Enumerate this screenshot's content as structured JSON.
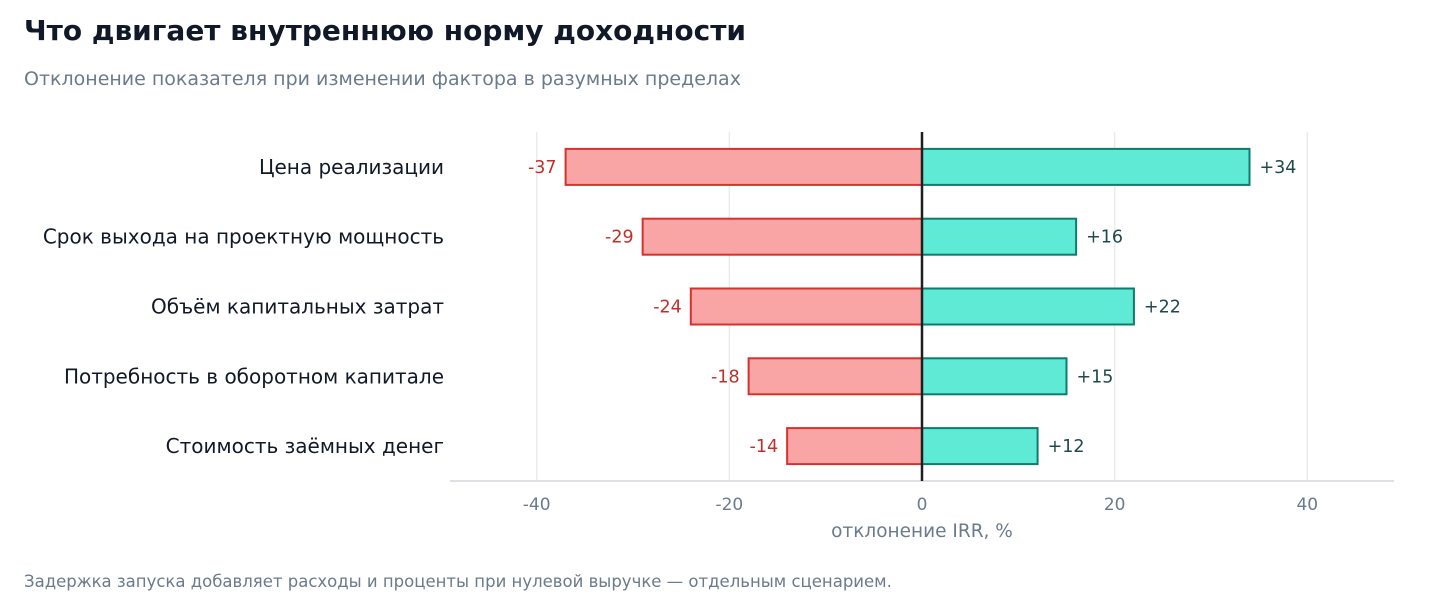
{
  "title": "Что двигает внутреннюю норму доходности",
  "subtitle": "Отклонение показателя при изменении фактора в разумных пределах",
  "footnote": "Задержка запуска добавляет расходы и проценты при нулевой выручке — отдельным сценарием.",
  "chart_data": {
    "type": "bar",
    "orientation": "horizontal",
    "layout": "tornado",
    "categories": [
      "Цена реализации",
      "Срок выхода на проектную мощность",
      "Объём капитальных затрат",
      "Потребность в оборотном капитале",
      "Стоимость заёмных денег"
    ],
    "series": [
      {
        "values": [
          -37,
          -29,
          -24,
          -18,
          -14
        ],
        "color": "#f9a5a5",
        "stroke": "#d6322d"
      },
      {
        "values": [
          34,
          16,
          22,
          15,
          12
        ],
        "color": "#5eead4",
        "stroke": "#0f7b6f"
      }
    ],
    "value_labels": {
      "negative": [
        "-37",
        "-29",
        "-24",
        "-18",
        "-14"
      ],
      "positive": [
        "+34",
        "+16",
        "+22",
        "+15",
        "+12"
      ]
    },
    "xlim": [
      -49,
      49
    ],
    "xticks": [
      -40,
      -20,
      0,
      20,
      40
    ],
    "xtick_labels": [
      "-40",
      "-20",
      "0",
      "20",
      "40"
    ],
    "xlabel": "отклонение IRR, %",
    "grid": "vertical",
    "zero_line": true
  }
}
